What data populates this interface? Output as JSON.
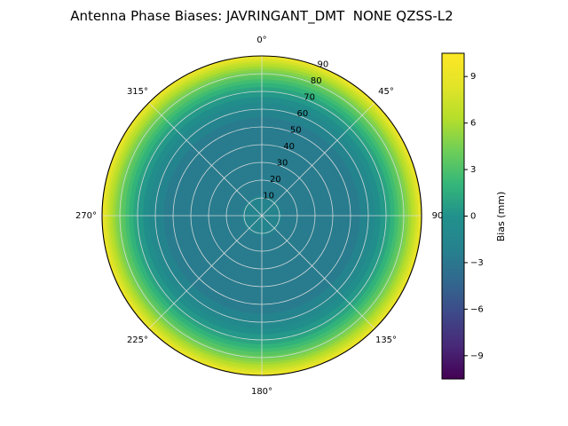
{
  "title": "Antenna Phase Biases: JAVRINGANT_DMT  NONE QZSS-L2",
  "colorbar": {
    "label": "Bias (mm)",
    "ticks": [
      -9,
      -6,
      -3,
      0,
      3,
      6,
      9
    ],
    "vmin": -10.5,
    "vmax": 10.5
  },
  "polar": {
    "theta_labels": [
      "0°",
      "45°",
      "90",
      "135°",
      "180°",
      "225°",
      "270°",
      "315°"
    ],
    "r_ticks": [
      10,
      20,
      30,
      40,
      50,
      60,
      70,
      80,
      90
    ],
    "r_max": 90
  },
  "chart_data": {
    "type": "heatmap",
    "projection": "polar",
    "title": "Antenna Phase Biases: JAVRINGANT_DMT  NONE QZSS-L2",
    "colormap": "viridis",
    "vmin": -10.5,
    "vmax": 10.5,
    "level_step": 0.75,
    "colorbar_label": "Bias (mm)",
    "colorbar_ticks": [
      -9,
      -6,
      -3,
      0,
      3,
      6,
      9
    ],
    "theta_zero": "top",
    "theta_direction": "clockwise",
    "theta_tick_labels": [
      "0°",
      "45°",
      "90",
      "135°",
      "180°",
      "225°",
      "270°",
      "315°"
    ],
    "r_ticks": [
      10,
      20,
      30,
      40,
      50,
      60,
      70,
      80,
      90
    ],
    "r_max": 90,
    "azimuthal_symmetry": true,
    "radial_profile": {
      "zenith_deg": [
        0,
        10,
        20,
        30,
        40,
        50,
        55,
        60,
        65,
        70,
        75,
        80,
        85,
        88,
        90
      ],
      "bias_mm": [
        -1.8,
        -2.2,
        -2.6,
        -2.9,
        -3.0,
        -2.8,
        -2.3,
        -1.5,
        -0.5,
        0.8,
        2.3,
        4.2,
        6.5,
        8.2,
        9.5
      ]
    }
  }
}
